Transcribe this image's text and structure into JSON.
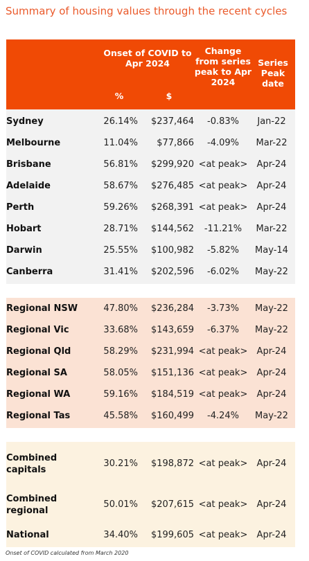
{
  "title": "Summary of housing values through the recent cycles",
  "header": {
    "onset": "Onset of COVID to Apr 2024",
    "pct": "%",
    "dollar": "$",
    "change": "Change from series peak to Apr 2024",
    "peak": "Series Peak date"
  },
  "capitals": [
    {
      "name": "Sydney",
      "pct": "26.14%",
      "dollar": "$237,464",
      "change": "-0.83%",
      "peak": "Jan-22"
    },
    {
      "name": "Melbourne",
      "pct": "11.04%",
      "dollar": "$77,866",
      "change": "-4.09%",
      "peak": "Mar-22"
    },
    {
      "name": "Brisbane",
      "pct": "56.81%",
      "dollar": "$299,920",
      "change": "<at peak>",
      "peak": "Apr-24"
    },
    {
      "name": "Adelaide",
      "pct": "58.67%",
      "dollar": "$276,485",
      "change": "<at peak>",
      "peak": "Apr-24"
    },
    {
      "name": "Perth",
      "pct": "59.26%",
      "dollar": "$268,391",
      "change": "<at peak>",
      "peak": "Apr-24"
    },
    {
      "name": "Hobart",
      "pct": "28.71%",
      "dollar": "$144,562",
      "change": "-11.21%",
      "peak": "Mar-22"
    },
    {
      "name": "Darwin",
      "pct": "25.55%",
      "dollar": "$100,982",
      "change": "-5.82%",
      "peak": "May-14"
    },
    {
      "name": "Canberra",
      "pct": "31.41%",
      "dollar": "$202,596",
      "change": "-6.02%",
      "peak": "May-22"
    }
  ],
  "regional": [
    {
      "name": "Regional NSW",
      "pct": "47.80%",
      "dollar": "$236,284",
      "change": "-3.73%",
      "peak": "May-22"
    },
    {
      "name": "Regional Vic",
      "pct": "33.68%",
      "dollar": "$143,659",
      "change": "-6.37%",
      "peak": "May-22"
    },
    {
      "name": "Regional Qld",
      "pct": "58.29%",
      "dollar": "$231,994",
      "change": "<at peak>",
      "peak": "Apr-24"
    },
    {
      "name": "Regional SA",
      "pct": "58.05%",
      "dollar": "$151,136",
      "change": "<at peak>",
      "peak": "Apr-24"
    },
    {
      "name": "Regional WA",
      "pct": "59.16%",
      "dollar": "$184,519",
      "change": "<at peak>",
      "peak": "Apr-24"
    },
    {
      "name": "Regional Tas",
      "pct": "45.58%",
      "dollar": "$160,499",
      "change": "-4.24%",
      "peak": "May-22"
    }
  ],
  "combined": [
    {
      "name": "Combined capitals",
      "pct": "30.21%",
      "dollar": "$198,872",
      "change": "<at peak>",
      "peak": "Apr-24"
    },
    {
      "name": "Combined regional",
      "pct": "50.01%",
      "dollar": "$207,615",
      "change": "<at peak>",
      "peak": "Apr-24"
    },
    {
      "name": "National",
      "pct": "34.40%",
      "dollar": "$199,605",
      "change": "<at peak>",
      "peak": "Apr-24"
    }
  ],
  "footnote": "Onset of COVID calculated from March 2020",
  "colors": {
    "title": "#ea5a2b",
    "header_bg": "#f04a05",
    "capitals_bg": "#f2f2f2",
    "regional_bg": "#fbe2d4",
    "combined_bg": "#fcf2e0"
  }
}
